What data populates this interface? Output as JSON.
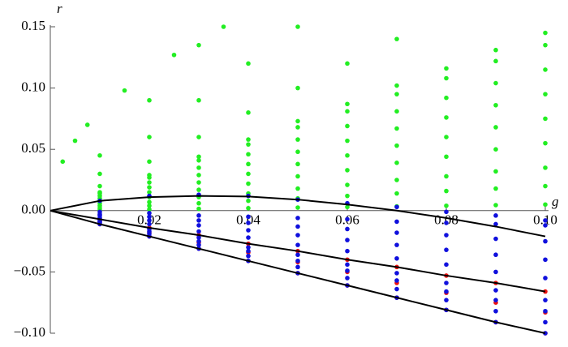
{
  "chart_data": {
    "type": "scatter",
    "xlabel": "g",
    "ylabel": "r",
    "xlim": [
      0,
      0.1
    ],
    "ylim": [
      -0.1,
      0.15
    ],
    "xticks": [
      0.02,
      0.04,
      0.06,
      0.08,
      {
        "value": 0.1,
        "label": "0.10"
      }
    ],
    "yticks": [
      {
        "value": -0.1,
        "label": "−0.10"
      },
      {
        "value": -0.05,
        "label": "−0.05"
      },
      {
        "value": 0,
        "label": "0.00"
      },
      0.05,
      {
        "value": 0.1,
        "label": "0.10"
      },
      0.15
    ],
    "series": [
      {
        "mode": "points",
        "color": "#22ee22",
        "x": [
          0.01,
          0.02,
          0.03,
          0.04,
          0.05,
          0.06,
          0.07,
          0.08,
          0.09,
          0.1,
          0.01,
          0.02,
          0.03,
          0.04,
          0.05,
          0.06,
          0.07,
          0.08,
          0.09,
          0.1,
          0.01,
          0.02,
          0.03,
          0.04,
          0.05,
          0.06,
          0.07,
          0.08,
          0.09,
          0.1,
          0.01,
          0.02,
          0.03,
          0.04,
          0.05,
          0.06,
          0.07,
          0.08,
          0.09,
          0.1,
          0.01,
          0.02,
          0.03,
          0.04,
          0.05,
          0.06,
          0.07,
          0.08,
          0.09,
          0.1,
          0.01,
          0.02,
          0.03,
          0.04,
          0.05,
          0.06,
          0.07,
          0.08,
          0.09,
          0.1,
          0.01,
          0.02,
          0.03,
          0.04,
          0.05,
          0.06,
          0.07,
          0.08,
          0.09,
          0.1,
          0.01,
          0.02,
          0.03,
          0.04,
          0.05,
          0.06,
          0.07,
          0.08,
          0.09,
          0.1,
          0.01,
          0.02,
          0.03,
          0.04,
          0.05,
          0.06,
          0.07,
          0.08,
          0.09,
          0.1,
          0.01,
          0.02,
          0.03,
          0.04,
          0.05,
          0.06,
          0.07,
          0.01,
          0.02,
          0.03,
          0.04,
          0.05,
          0.01,
          0.02,
          0.03,
          0.0025,
          0.005,
          0.0075,
          0.015,
          0.025,
          0.035
        ],
        "values": [
          0.0005,
          0.001,
          0.0015,
          0.002,
          0.0025,
          0.003,
          0.0035,
          0.004,
          0.0045,
          0.005,
          0.002,
          0.004,
          0.006,
          0.008,
          0.01,
          0.012,
          0.014,
          0.016,
          0.018,
          0.02,
          0.004,
          0.007,
          0.011,
          0.014,
          0.018,
          0.021,
          0.025,
          0.028,
          0.032,
          0.035,
          0.006,
          0.011,
          0.017,
          0.022,
          0.028,
          0.033,
          0.039,
          0.044,
          0.05,
          0.055,
          0.008,
          0.015,
          0.023,
          0.03,
          0.038,
          0.045,
          0.053,
          0.06,
          0.068,
          0.075,
          0.01,
          0.019,
          0.029,
          0.038,
          0.048,
          0.057,
          0.067,
          0.076,
          0.086,
          0.095,
          0.012,
          0.023,
          0.035,
          0.046,
          0.058,
          0.069,
          0.081,
          0.092,
          0.104,
          0.115,
          0.014,
          0.027,
          0.041,
          0.054,
          0.068,
          0.081,
          0.095,
          0.108,
          0.122,
          0.135,
          0.015,
          0.029,
          0.044,
          0.058,
          0.073,
          0.087,
          0.102,
          0.116,
          0.131,
          0.145,
          0.02,
          0.04,
          0.06,
          0.08,
          0.1,
          0.12,
          0.14,
          0.03,
          0.06,
          0.09,
          0.12,
          0.15,
          0.045,
          0.09,
          0.135,
          0.04,
          0.057,
          0.07,
          0.098,
          0.127,
          0.15
        ]
      },
      {
        "mode": "points",
        "color": "#ee1111",
        "x": [
          0.01,
          0.01,
          0.01,
          0.02,
          0.02,
          0.02,
          0.03,
          0.03,
          0.03,
          0.04,
          0.04,
          0.04,
          0.05,
          0.05,
          0.05,
          0.06,
          0.06,
          0.06,
          0.07,
          0.07,
          0.07,
          0.08,
          0.08,
          0.08,
          0.09,
          0.09,
          0.09,
          0.1,
          0.1,
          0.1
        ],
        "values": [
          -0.007,
          -0.009,
          -0.011,
          -0.014,
          -0.018,
          -0.021,
          -0.02,
          -0.026,
          -0.031,
          -0.027,
          -0.034,
          -0.041,
          -0.033,
          -0.042,
          -0.051,
          -0.04,
          -0.05,
          -0.061,
          -0.046,
          -0.059,
          -0.071,
          -0.053,
          -0.067,
          -0.081,
          -0.059,
          -0.075,
          -0.091,
          -0.066,
          -0.083,
          -0.1
        ]
      },
      {
        "mode": "points",
        "color": "#1010dd",
        "x": [
          0.01,
          0.02,
          0.03,
          0.04,
          0.05,
          0.06,
          0.07,
          0.08,
          0.09,
          0.1,
          0.01,
          0.02,
          0.03,
          0.04,
          0.05,
          0.06,
          0.07,
          0.08,
          0.09,
          0.1,
          0.01,
          0.02,
          0.03,
          0.04,
          0.05,
          0.06,
          0.07,
          0.08,
          0.09,
          0.1,
          0.01,
          0.02,
          0.03,
          0.04,
          0.05,
          0.06,
          0.07,
          0.08,
          0.09,
          0.1,
          0.01,
          0.02,
          0.03,
          0.04,
          0.05,
          0.06,
          0.07,
          0.08,
          0.09,
          0.1,
          0.01,
          0.01,
          0.01,
          0.01,
          0.02,
          0.02,
          0.02,
          0.02,
          0.03,
          0.03,
          0.03,
          0.03,
          0.04,
          0.04,
          0.04,
          0.04,
          0.05,
          0.05,
          0.05,
          0.05,
          0.06,
          0.06,
          0.06,
          0.06,
          0.07,
          0.07,
          0.07,
          0.07,
          0.08,
          0.08,
          0.08,
          0.08,
          0.09,
          0.09,
          0.09,
          0.09,
          0.1,
          0.1,
          0.1,
          0.1
        ],
        "values": [
          0.008,
          0.012,
          0.013,
          0.012,
          0.009,
          0.006,
          0.003,
          -0.001,
          -0.004,
          -0.008,
          -0.001,
          -0.002,
          -0.004,
          -0.005,
          -0.006,
          -0.007,
          -0.009,
          -0.01,
          -0.011,
          -0.012,
          -0.003,
          -0.005,
          -0.008,
          -0.01,
          -0.013,
          -0.015,
          -0.018,
          -0.02,
          -0.023,
          -0.025,
          -0.004,
          -0.008,
          -0.012,
          -0.016,
          -0.02,
          -0.024,
          -0.028,
          -0.032,
          -0.036,
          -0.04,
          -0.006,
          -0.011,
          -0.017,
          -0.022,
          -0.028,
          -0.033,
          -0.039,
          -0.044,
          -0.05,
          -0.055,
          -0.008,
          -0.009,
          -0.01,
          -0.011,
          -0.015,
          -0.017,
          -0.019,
          -0.021,
          -0.022,
          -0.025,
          -0.028,
          -0.031,
          -0.03,
          -0.033,
          -0.037,
          -0.041,
          -0.036,
          -0.041,
          -0.046,
          -0.051,
          -0.044,
          -0.049,
          -0.055,
          -0.061,
          -0.051,
          -0.057,
          -0.064,
          -0.071,
          -0.059,
          -0.066,
          -0.073,
          -0.081,
          -0.065,
          -0.073,
          -0.082,
          -0.091,
          -0.073,
          -0.082,
          -0.091,
          -0.1
        ]
      },
      {
        "mode": "line",
        "color": "#000000",
        "x": [
          0,
          0.01,
          0.02,
          0.03,
          0.04,
          0.05,
          0.06,
          0.07,
          0.08,
          0.09,
          0.1
        ],
        "values": [
          0,
          0.008,
          0.011,
          0.012,
          0.0115,
          0.009,
          0.005,
          0,
          -0.006,
          -0.013,
          -0.021
        ]
      },
      {
        "mode": "line",
        "color": "#000000",
        "x": [
          0,
          0.01,
          0.02,
          0.03,
          0.04,
          0.05,
          0.06,
          0.07,
          0.08,
          0.09,
          0.1
        ],
        "values": [
          0,
          -0.007,
          -0.014,
          -0.02,
          -0.027,
          -0.033,
          -0.04,
          -0.046,
          -0.053,
          -0.059,
          -0.066
        ]
      },
      {
        "mode": "line",
        "color": "#000000",
        "x": [
          0,
          0.01,
          0.02,
          0.03,
          0.04,
          0.05,
          0.06,
          0.07,
          0.08,
          0.09,
          0.1
        ],
        "values": [
          0,
          -0.011,
          -0.021,
          -0.031,
          -0.041,
          -0.051,
          -0.061,
          -0.071,
          -0.081,
          -0.091,
          -0.1
        ]
      }
    ]
  }
}
